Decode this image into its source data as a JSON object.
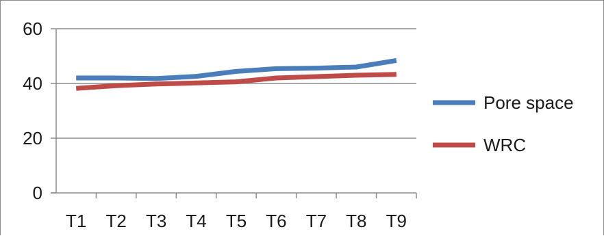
{
  "chart_data": {
    "type": "line",
    "categories": [
      "T1",
      "T2",
      "T3",
      "T4",
      "T5",
      "T6",
      "T7",
      "T8",
      "T9"
    ],
    "series": [
      {
        "name": "Pore space",
        "values": [
          42,
          42,
          41.8,
          42.6,
          44.4,
          45.4,
          45.6,
          46,
          48.4
        ],
        "color": "#4a7ebb"
      },
      {
        "name": "WRC",
        "values": [
          38.2,
          39.2,
          39.8,
          40.2,
          40.6,
          42,
          42.5,
          43,
          43.3
        ],
        "color": "#be4b48"
      }
    ],
    "yticks": [
      0,
      20,
      40,
      60
    ],
    "ylim": [
      0,
      60
    ],
    "grid": true,
    "legend_position": "right",
    "title": "",
    "xlabel": "",
    "ylabel": ""
  }
}
